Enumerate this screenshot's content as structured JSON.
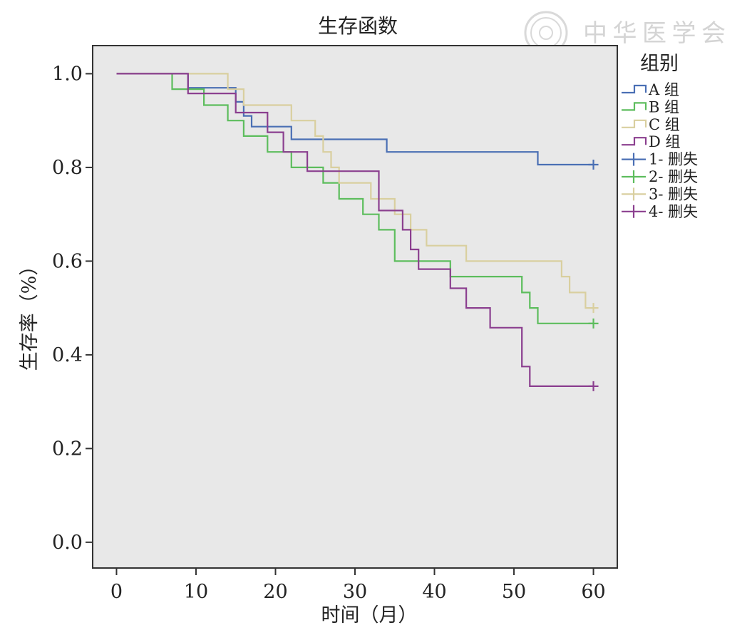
{
  "chart_data": {
    "type": "line",
    "title": "生存函数",
    "xlabel": "时间（月）",
    "ylabel": "生存率（%）",
    "xlim": [
      -3,
      63
    ],
    "ylim": [
      -0.055,
      1.06
    ],
    "xticks": [
      0,
      10,
      20,
      30,
      40,
      50,
      60
    ],
    "yticks": [
      0.0,
      0.2,
      0.4,
      0.6,
      0.8,
      1.0
    ],
    "ytick_labels": [
      "0.0",
      "0.2",
      "0.4",
      "0.6",
      "0.8",
      "1.0"
    ],
    "grid": false,
    "legend_title": "组别",
    "legend_position": "right",
    "series": [
      {
        "name": "A 组",
        "censor_label": "1- 删失",
        "color": "#4a6fb4",
        "step_points": [
          [
            0,
            1.0
          ],
          [
            9,
            1.0
          ],
          [
            9,
            0.97
          ],
          [
            15,
            0.97
          ],
          [
            15,
            0.94
          ],
          [
            16,
            0.94
          ],
          [
            16,
            0.91
          ],
          [
            17,
            0.91
          ],
          [
            17,
            0.887
          ],
          [
            22,
            0.887
          ],
          [
            22,
            0.86
          ],
          [
            34,
            0.86
          ],
          [
            34,
            0.833
          ],
          [
            53,
            0.833
          ],
          [
            53,
            0.806
          ],
          [
            60,
            0.806
          ]
        ],
        "censored": [
          [
            60,
            0.806
          ]
        ]
      },
      {
        "name": "B 组",
        "censor_label": "2- 删失",
        "color": "#5dbd5d",
        "step_points": [
          [
            0,
            1.0
          ],
          [
            7,
            1.0
          ],
          [
            7,
            0.967
          ],
          [
            11,
            0.967
          ],
          [
            11,
            0.933
          ],
          [
            14,
            0.933
          ],
          [
            14,
            0.9
          ],
          [
            16,
            0.9
          ],
          [
            16,
            0.867
          ],
          [
            19,
            0.867
          ],
          [
            19,
            0.833
          ],
          [
            22,
            0.833
          ],
          [
            22,
            0.8
          ],
          [
            26,
            0.8
          ],
          [
            26,
            0.767
          ],
          [
            28,
            0.767
          ],
          [
            28,
            0.733
          ],
          [
            31,
            0.733
          ],
          [
            31,
            0.7
          ],
          [
            33,
            0.7
          ],
          [
            33,
            0.667
          ],
          [
            35,
            0.667
          ],
          [
            35,
            0.6
          ],
          [
            42,
            0.6
          ],
          [
            42,
            0.567
          ],
          [
            51,
            0.567
          ],
          [
            51,
            0.533
          ],
          [
            52,
            0.533
          ],
          [
            52,
            0.5
          ],
          [
            53,
            0.5
          ],
          [
            53,
            0.467
          ],
          [
            60,
            0.467
          ]
        ],
        "censored": [
          [
            60,
            0.467
          ]
        ]
      },
      {
        "name": "C 组",
        "censor_label": "3- 删失",
        "color": "#d9cf9f",
        "step_points": [
          [
            0,
            1.0
          ],
          [
            14,
            1.0
          ],
          [
            14,
            0.967
          ],
          [
            16,
            0.967
          ],
          [
            16,
            0.933
          ],
          [
            22,
            0.933
          ],
          [
            22,
            0.9
          ],
          [
            25,
            0.9
          ],
          [
            25,
            0.867
          ],
          [
            26,
            0.867
          ],
          [
            26,
            0.833
          ],
          [
            27,
            0.833
          ],
          [
            27,
            0.8
          ],
          [
            28,
            0.8
          ],
          [
            28,
            0.767
          ],
          [
            32,
            0.767
          ],
          [
            32,
            0.733
          ],
          [
            35,
            0.733
          ],
          [
            35,
            0.7
          ],
          [
            37,
            0.7
          ],
          [
            37,
            0.667
          ],
          [
            39,
            0.667
          ],
          [
            39,
            0.633
          ],
          [
            44,
            0.633
          ],
          [
            44,
            0.6
          ],
          [
            56,
            0.6
          ],
          [
            56,
            0.567
          ],
          [
            57,
            0.567
          ],
          [
            57,
            0.533
          ],
          [
            59,
            0.533
          ],
          [
            59,
            0.5
          ],
          [
            60,
            0.5
          ]
        ],
        "censored": [
          [
            60,
            0.5
          ]
        ]
      },
      {
        "name": "D 组",
        "censor_label": "4- 删失",
        "color": "#8b3f8f",
        "step_points": [
          [
            0,
            1.0
          ],
          [
            9,
            1.0
          ],
          [
            9,
            0.958
          ],
          [
            15,
            0.958
          ],
          [
            15,
            0.917
          ],
          [
            19,
            0.917
          ],
          [
            19,
            0.875
          ],
          [
            21,
            0.875
          ],
          [
            21,
            0.833
          ],
          [
            24,
            0.833
          ],
          [
            24,
            0.792
          ],
          [
            33,
            0.792
          ],
          [
            33,
            0.708
          ],
          [
            36,
            0.708
          ],
          [
            36,
            0.667
          ],
          [
            37,
            0.667
          ],
          [
            37,
            0.625
          ],
          [
            38,
            0.625
          ],
          [
            38,
            0.583
          ],
          [
            42,
            0.583
          ],
          [
            42,
            0.542
          ],
          [
            44,
            0.542
          ],
          [
            44,
            0.5
          ],
          [
            47,
            0.5
          ],
          [
            47,
            0.458
          ],
          [
            51,
            0.458
          ],
          [
            51,
            0.375
          ],
          [
            52,
            0.375
          ],
          [
            52,
            0.333
          ],
          [
            60,
            0.333
          ]
        ],
        "censored": [
          [
            60,
            0.333
          ]
        ]
      }
    ]
  },
  "watermark": {
    "text": "中华医学会"
  },
  "colors": {
    "plot_background": "#e8e8e8",
    "axis": "#333333",
    "text": "#222222"
  }
}
